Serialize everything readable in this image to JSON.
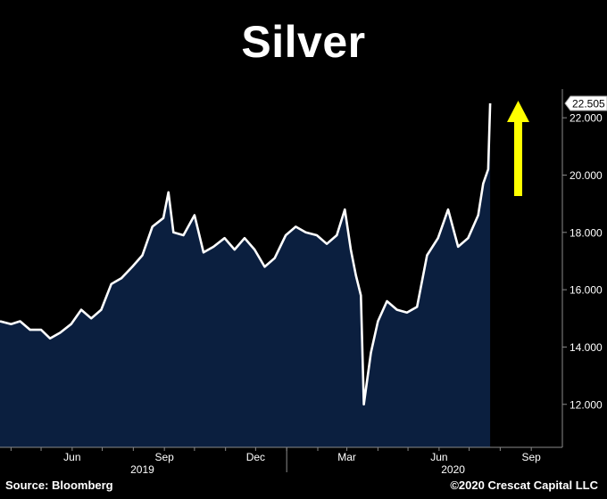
{
  "title": "Silver",
  "source": "Source: Bloomberg",
  "copyright": "©2020 Crescat Capital LLC",
  "colors": {
    "background": "#000000",
    "area_fill": "#0b1f3f",
    "line": "#ffffff",
    "arrow": "#ffff00",
    "axis": "#8a8a8a"
  },
  "chart_data": {
    "type": "area",
    "ylim": [
      10.5,
      23.0
    ],
    "y_ticks": [
      12,
      14,
      16,
      18,
      20,
      22
    ],
    "y_tick_labels": [
      "12.000",
      "14.000",
      "16.000",
      "18.000",
      "20.000",
      "22.000"
    ],
    "last_value": 22.505,
    "last_value_label": "22.505",
    "month_labels": [
      "Jun",
      "Sep",
      "Dec",
      "Mar",
      "Jun",
      "Sep"
    ],
    "year_labels": [
      "2019",
      "2020"
    ],
    "series": [
      {
        "x": [
          "2019-03-21",
          "2019-04-01",
          "2019-04-10",
          "2019-04-20",
          "2019-05-01",
          "2019-05-10",
          "2019-05-20",
          "2019-05-31",
          "2019-06-10",
          "2019-06-20",
          "2019-06-30",
          "2019-07-10",
          "2019-07-20",
          "2019-07-31",
          "2019-08-10",
          "2019-08-20",
          "2019-08-31",
          "2019-09-05",
          "2019-09-10",
          "2019-09-20",
          "2019-10-01",
          "2019-10-10",
          "2019-10-20",
          "2019-10-31",
          "2019-11-10",
          "2019-11-20",
          "2019-11-30",
          "2019-12-10",
          "2019-12-20",
          "2019-12-31",
          "2020-01-10",
          "2020-01-20",
          "2020-01-31",
          "2020-02-10",
          "2020-02-20",
          "2020-02-28",
          "2020-03-05",
          "2020-03-10",
          "2020-03-15",
          "2020-03-18",
          "2020-03-25",
          "2020-04-01",
          "2020-04-10",
          "2020-04-20",
          "2020-04-30",
          "2020-05-10",
          "2020-05-20",
          "2020-05-31",
          "2020-06-10",
          "2020-06-20",
          "2020-06-30",
          "2020-07-10",
          "2020-07-15",
          "2020-07-20",
          "2020-07-22"
        ],
        "y": [
          14.9,
          14.8,
          14.9,
          14.6,
          14.6,
          14.3,
          14.5,
          14.8,
          15.3,
          15.0,
          15.3,
          16.2,
          16.4,
          16.8,
          17.2,
          18.2,
          18.5,
          19.4,
          18.0,
          17.9,
          18.6,
          17.3,
          17.5,
          17.8,
          17.4,
          17.8,
          17.4,
          16.8,
          17.1,
          17.9,
          18.2,
          18.0,
          17.9,
          17.6,
          17.9,
          18.8,
          17.4,
          16.5,
          15.8,
          12.0,
          13.8,
          14.9,
          15.6,
          15.3,
          15.2,
          15.4,
          17.2,
          17.8,
          18.8,
          17.5,
          17.8,
          18.6,
          19.7,
          20.2,
          22.505
        ]
      }
    ]
  }
}
